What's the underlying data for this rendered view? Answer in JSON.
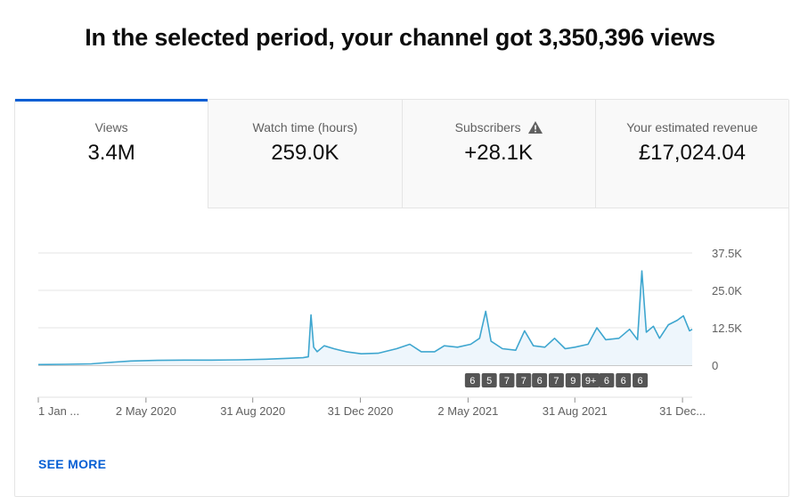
{
  "headline": "In the selected period, your channel got 3,350,396 views",
  "tabs": [
    {
      "label": "Views",
      "value": "3.4M"
    },
    {
      "label": "Watch time (hours)",
      "value": "259.0K"
    },
    {
      "label": "Subscribers",
      "value": "+28.1K"
    },
    {
      "label": "Your estimated revenue",
      "value": "£17,024.04"
    }
  ],
  "see_more": "SEE MORE",
  "colors": {
    "accent": "#065fd4",
    "line": "#3ea6cf",
    "fill": "#eef6fc"
  },
  "chart_data": {
    "type": "area",
    "title": "",
    "xlabel": "",
    "ylabel": "",
    "ylim": [
      0,
      37500
    ],
    "yticks": [
      0,
      12500,
      25000,
      37500
    ],
    "ytick_labels": [
      "0",
      "12.5K",
      "25.0K",
      "37.5K"
    ],
    "x_start": "2020-01-01",
    "x_end": "2022-01-11",
    "xtick_dates": [
      "2020-01-01",
      "2020-05-02",
      "2020-08-31",
      "2020-12-31",
      "2021-05-02",
      "2021-08-31",
      "2021-12-31"
    ],
    "xtick_labels": [
      "1 Jan ...",
      "2 May 2020",
      "31 Aug 2020",
      "31 Dec 2020",
      "2 May 2021",
      "31 Aug 2021",
      "31 Dec..."
    ],
    "grid": true,
    "series": [
      {
        "points": [
          [
            "2020-01-01",
            200
          ],
          [
            "2020-02-01",
            300
          ],
          [
            "2020-03-01",
            450
          ],
          [
            "2020-03-20",
            900
          ],
          [
            "2020-04-15",
            1400
          ],
          [
            "2020-05-15",
            1600
          ],
          [
            "2020-06-15",
            1700
          ],
          [
            "2020-07-15",
            1700
          ],
          [
            "2020-08-15",
            1800
          ],
          [
            "2020-09-15",
            2000
          ],
          [
            "2020-10-10",
            2300
          ],
          [
            "2020-10-27",
            2500
          ],
          [
            "2020-11-02",
            2800
          ],
          [
            "2020-11-05",
            16800
          ],
          [
            "2020-11-08",
            6000
          ],
          [
            "2020-11-12",
            4500
          ],
          [
            "2020-11-20",
            6500
          ],
          [
            "2020-12-01",
            5500
          ],
          [
            "2020-12-15",
            4500
          ],
          [
            "2021-01-01",
            3800
          ],
          [
            "2021-01-20",
            4000
          ],
          [
            "2021-02-10",
            5500
          ],
          [
            "2021-02-25",
            7000
          ],
          [
            "2021-03-10",
            4500
          ],
          [
            "2021-03-25",
            4500
          ],
          [
            "2021-04-05",
            6500
          ],
          [
            "2021-04-20",
            6000
          ],
          [
            "2021-05-05",
            7000
          ],
          [
            "2021-05-15",
            9000
          ],
          [
            "2021-05-22",
            18000
          ],
          [
            "2021-05-28",
            8000
          ],
          [
            "2021-06-10",
            5500
          ],
          [
            "2021-06-25",
            5000
          ],
          [
            "2021-07-05",
            11500
          ],
          [
            "2021-07-15",
            6500
          ],
          [
            "2021-07-28",
            6000
          ],
          [
            "2021-08-08",
            9000
          ],
          [
            "2021-08-20",
            5500
          ],
          [
            "2021-08-31",
            6000
          ],
          [
            "2021-09-15",
            7000
          ],
          [
            "2021-09-25",
            12500
          ],
          [
            "2021-10-05",
            8500
          ],
          [
            "2021-10-20",
            9000
          ],
          [
            "2021-11-01",
            12000
          ],
          [
            "2021-11-10",
            8500
          ],
          [
            "2021-11-15",
            31500
          ],
          [
            "2021-11-20",
            11000
          ],
          [
            "2021-11-28",
            13000
          ],
          [
            "2021-12-05",
            9000
          ],
          [
            "2021-12-15",
            13500
          ],
          [
            "2021-12-25",
            15000
          ],
          [
            "2022-01-01",
            16500
          ],
          [
            "2022-01-08",
            11500
          ],
          [
            "2022-01-11",
            12000
          ]
        ]
      }
    ],
    "annotations": [
      {
        "date": "2021-05-07",
        "label": "6"
      },
      {
        "date": "2021-05-26",
        "label": "5"
      },
      {
        "date": "2021-06-15",
        "label": "7"
      },
      {
        "date": "2021-07-04",
        "label": "7"
      },
      {
        "date": "2021-07-22",
        "label": "6"
      },
      {
        "date": "2021-08-10",
        "label": "7"
      },
      {
        "date": "2021-08-29",
        "label": "9"
      },
      {
        "date": "2021-09-18",
        "label": "9+"
      },
      {
        "date": "2021-10-06",
        "label": "6"
      },
      {
        "date": "2021-10-25",
        "label": "6"
      },
      {
        "date": "2021-11-13",
        "label": "6"
      }
    ]
  }
}
